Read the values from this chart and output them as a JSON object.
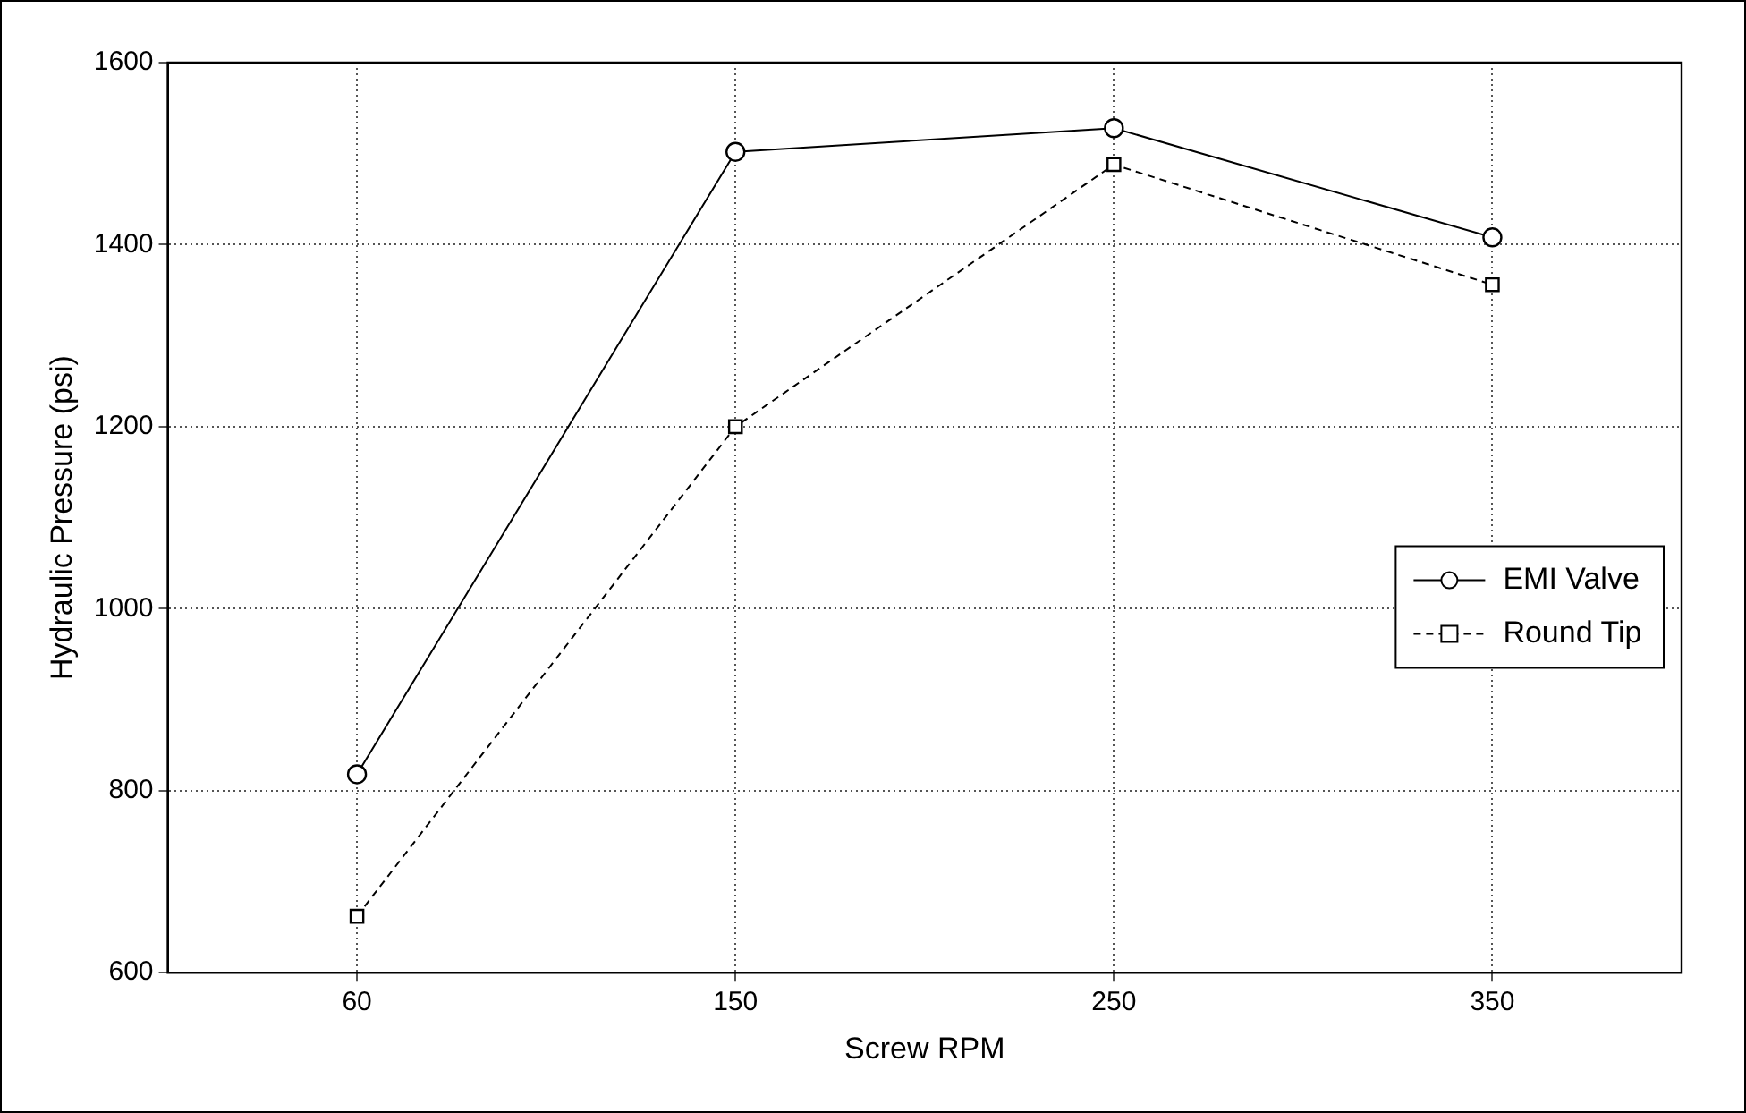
{
  "chart_data": {
    "type": "line",
    "xlabel": "Screw RPM",
    "ylabel": "Hydraulic Pressure (psi)",
    "categories": [
      "60",
      "150",
      "250",
      "350"
    ],
    "series": [
      {
        "name": "EMI Valve",
        "color": "#000000",
        "values": [
          818,
          1502,
          1528,
          1408
        ],
        "marker": "circle",
        "line_style": "solid"
      },
      {
        "name": "Round Tip",
        "color": "#000000",
        "values": [
          662,
          1200,
          1488,
          1356
        ],
        "marker": "square",
        "line_style": "dashed"
      }
    ],
    "ylim": [
      600,
      1600
    ],
    "yticks": [
      600,
      800,
      1000,
      1200,
      1400,
      1600
    ],
    "grid": true,
    "legend": "right"
  }
}
